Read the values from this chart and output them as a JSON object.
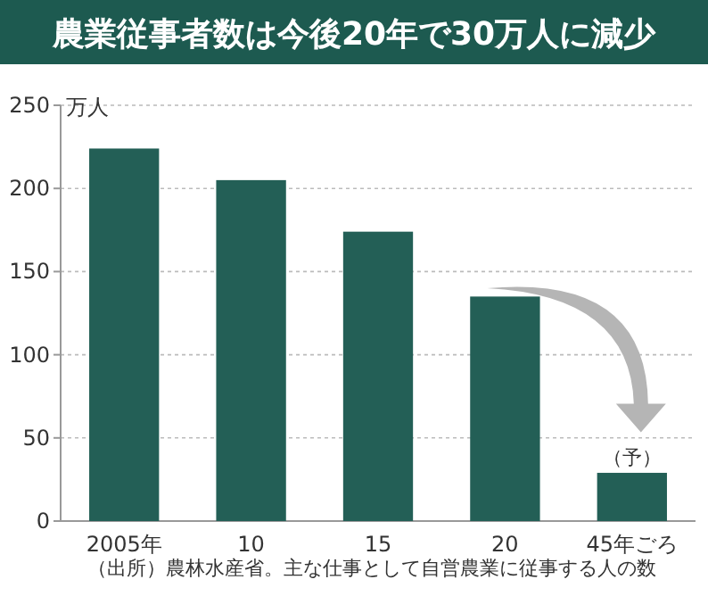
{
  "chart_data": {
    "type": "bar",
    "title": "農業従事者数は今後20年で30万人に減少",
    "ylabel": "万人",
    "categories": [
      "2005年",
      "10",
      "15",
      "20",
      "45年ごろ"
    ],
    "values": [
      224,
      205,
      174,
      135,
      29
    ],
    "color": "#235f56",
    "ylim": [
      0,
      250
    ],
    "yticks": [
      0,
      50,
      100,
      150,
      200,
      250
    ],
    "grid": "y",
    "annotations": [
      {
        "text": "（予）",
        "x": "45年ごろ",
        "y": 29
      },
      "（出所）農林水産省。主な仕事として自営農業に従事する人の数"
    ]
  }
}
